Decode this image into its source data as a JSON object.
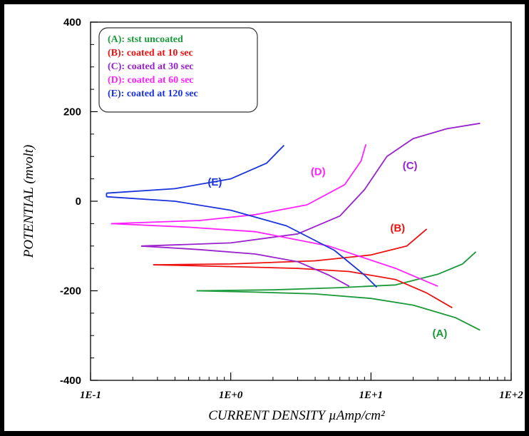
{
  "chart_data": {
    "type": "line",
    "title": "",
    "xlabel": "CURRENT DENSITY µAmp/cm²",
    "ylabel": "POTENTIAL (mvolt)",
    "x_scale": "log",
    "xlim": [
      0.1,
      100
    ],
    "ylim": [
      -400,
      400
    ],
    "x_ticks": [
      {
        "value": 0.1,
        "label": "1E-1"
      },
      {
        "value": 1,
        "label": "1E+0"
      },
      {
        "value": 10,
        "label": "1E+1"
      },
      {
        "value": 100,
        "label": "1E+2"
      }
    ],
    "y_ticks": [
      {
        "value": 400,
        "label": "400"
      },
      {
        "value": 200,
        "label": "200"
      },
      {
        "value": 0,
        "label": "0"
      },
      {
        "value": -200,
        "label": "-200"
      },
      {
        "value": -400,
        "label": "-400"
      }
    ],
    "grid": false,
    "legend_position": "top-left",
    "legend": [
      {
        "text": "(A): stst uncoated",
        "color": "#1a9a3a"
      },
      {
        "text": "(B): coated at 10 sec",
        "color": "#ee1111"
      },
      {
        "text": "(C): coated at 30 sec",
        "color": "#9922cc"
      },
      {
        "text": "(D): coated at 60 sec",
        "color": "#ff22ff"
      },
      {
        "text": "(E): coated at 120 sec",
        "color": "#1a33dd"
      }
    ],
    "series": [
      {
        "name": "(A)",
        "color": "#1a9a3a",
        "label": {
          "text": "(A)",
          "x": 31,
          "y": -303
        },
        "cathodic": [
          [
            0.57,
            -200
          ],
          [
            1.5,
            -203
          ],
          [
            4,
            -207
          ],
          [
            10,
            -217
          ],
          [
            20,
            -232
          ],
          [
            40,
            -260
          ],
          [
            60,
            -288
          ]
        ],
        "anodic": [
          [
            0.57,
            -200
          ],
          [
            2,
            -198
          ],
          [
            6,
            -193
          ],
          [
            15,
            -187
          ],
          [
            30,
            -163
          ],
          [
            45,
            -140
          ],
          [
            56,
            -113
          ]
        ]
      },
      {
        "name": "(B)",
        "color": "#ee1111",
        "label": {
          "text": "(B)",
          "x": 15.5,
          "y": -68
        },
        "cathodic": [
          [
            0.28,
            -142
          ],
          [
            1,
            -146
          ],
          [
            3,
            -150
          ],
          [
            7,
            -157
          ],
          [
            15,
            -175
          ],
          [
            25,
            -205
          ],
          [
            38,
            -238
          ]
        ],
        "anodic": [
          [
            0.28,
            -142
          ],
          [
            1,
            -140
          ],
          [
            4,
            -133
          ],
          [
            10,
            -120
          ],
          [
            18,
            -100
          ],
          [
            25,
            -62
          ]
        ]
      },
      {
        "name": "(C)",
        "color": "#9922cc",
        "label": {
          "text": "(C)",
          "x": 19,
          "y": 72
        },
        "cathodic": [
          [
            0.23,
            -100
          ],
          [
            0.6,
            -108
          ],
          [
            1.5,
            -118
          ],
          [
            3,
            -135
          ],
          [
            5,
            -165
          ],
          [
            7,
            -190
          ]
        ],
        "anodic": [
          [
            0.23,
            -100
          ],
          [
            1,
            -93
          ],
          [
            3,
            -73
          ],
          [
            6,
            -33
          ],
          [
            9,
            26
          ],
          [
            13,
            100
          ],
          [
            20,
            140
          ],
          [
            35,
            162
          ],
          [
            60,
            174
          ]
        ]
      },
      {
        "name": "(D)",
        "color": "#ff22ff",
        "label": {
          "text": "(D)",
          "x": 4.2,
          "y": 58
        },
        "cathodic": [
          [
            0.14,
            -50
          ],
          [
            0.5,
            -58
          ],
          [
            1.5,
            -68
          ],
          [
            5,
            -100
          ],
          [
            15,
            -150
          ],
          [
            30,
            -190
          ]
        ],
        "anodic": [
          [
            0.14,
            -50
          ],
          [
            0.6,
            -43
          ],
          [
            1.5,
            -30
          ],
          [
            3.5,
            -8
          ],
          [
            6.5,
            37
          ],
          [
            8.5,
            90
          ],
          [
            9.2,
            127
          ]
        ]
      },
      {
        "name": "(E)",
        "color": "#1a33dd",
        "label": {
          "text": "(E)",
          "x": 0.77,
          "y": 35
        },
        "cathodic": [
          [
            0.13,
            10
          ],
          [
            0.4,
            0
          ],
          [
            1,
            -20
          ],
          [
            2.5,
            -55
          ],
          [
            5.5,
            -110
          ],
          [
            9,
            -165
          ],
          [
            11,
            -192
          ]
        ],
        "anodic": [
          [
            0.13,
            18
          ],
          [
            0.4,
            28
          ],
          [
            1,
            50
          ],
          [
            1.8,
            85
          ],
          [
            2.4,
            125
          ]
        ]
      }
    ]
  }
}
